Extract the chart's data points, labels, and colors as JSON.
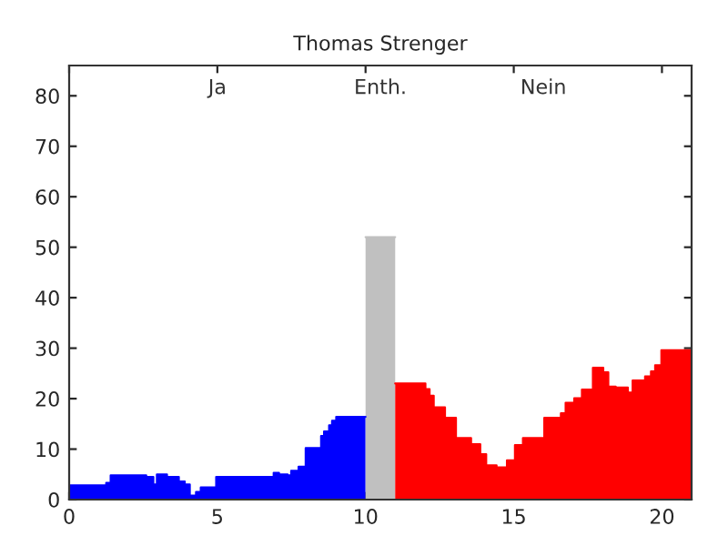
{
  "chart_data": {
    "type": "area",
    "title": "Thomas Strenger",
    "xlim": [
      0,
      21
    ],
    "xticks": [
      0,
      5,
      10,
      15,
      20
    ],
    "ylim": [
      0,
      86
    ],
    "yticks": [
      0,
      10,
      20,
      30,
      40,
      50,
      60,
      70,
      80
    ],
    "grid": false,
    "annotations": [
      "Ja",
      "Enth.",
      "Nein"
    ],
    "series": [
      {
        "color": "#0000ff",
        "x": [
          0,
          1.25,
          1.25,
          1.4,
          1.4,
          2.6,
          2.6,
          2.84,
          2.84,
          2.96,
          2.96,
          3.3,
          3.3,
          3.7,
          3.7,
          3.9,
          3.9,
          4.07,
          4.07,
          4.28,
          4.28,
          4.44,
          4.44,
          4.96,
          4.96,
          6.9,
          6.9,
          7.08,
          7.08,
          7.37,
          7.37,
          7.49,
          7.49,
          7.74,
          7.74,
          7.98,
          7.98,
          8.5,
          8.5,
          8.6,
          8.6,
          8.77,
          8.77,
          8.87,
          8.87,
          9.01,
          9.01,
          10
        ],
        "values": [
          2.8,
          2.8,
          3.3,
          3.3,
          4.8,
          4.8,
          4.5,
          4.5,
          3,
          3,
          5,
          5,
          4.5,
          4.5,
          3.6,
          3.6,
          3,
          3,
          0.8,
          0.8,
          1.5,
          1.5,
          2.4,
          2.4,
          4.5,
          4.5,
          5.3,
          5.3,
          5,
          5,
          4.8,
          4.8,
          5.7,
          5.7,
          6.5,
          6.5,
          10.2,
          10.2,
          12.6,
          12.6,
          13.5,
          13.5,
          14.7,
          14.7,
          15.6,
          15.6,
          16.4,
          16.4
        ]
      },
      {
        "color": "#c0c0c0",
        "x": [
          10,
          11
        ],
        "values": [
          52,
          52
        ]
      },
      {
        "color": "#ff0000",
        "x": [
          11,
          12.02,
          12.02,
          12.16,
          12.16,
          12.3,
          12.3,
          12.68,
          12.68,
          13.05,
          13.05,
          13.56,
          13.56,
          13.87,
          13.87,
          14.07,
          14.07,
          14.42,
          14.42,
          14.77,
          14.77,
          15.04,
          15.04,
          15.31,
          15.31,
          16.03,
          16.03,
          16.59,
          16.59,
          16.75,
          16.75,
          17.04,
          17.04,
          17.3,
          17.3,
          17.67,
          17.67,
          18.02,
          18.02,
          18.19,
          18.19,
          18.44,
          18.44,
          18.85,
          18.85,
          19.01,
          19.01,
          19.43,
          19.43,
          19.63,
          19.63,
          19.77,
          19.77,
          19.98,
          19.98,
          21
        ],
        "values": [
          23,
          23,
          21.9,
          21.9,
          20.6,
          20.6,
          18.3,
          18.3,
          16.2,
          16.2,
          12.2,
          12.2,
          11,
          11,
          9,
          9,
          6.8,
          6.8,
          6.4,
          6.4,
          7.8,
          7.8,
          10.8,
          10.8,
          12.2,
          12.2,
          16.2,
          16.2,
          17.1,
          17.1,
          19.2,
          19.2,
          20.1,
          20.1,
          21.8,
          21.8,
          26.1,
          26.1,
          25.2,
          25.2,
          22.4,
          22.4,
          22.2,
          22.2,
          21.2,
          21.2,
          23.6,
          23.6,
          24.4,
          24.4,
          25.4,
          25.4,
          26.6,
          26.6,
          29.6,
          29.6
        ]
      }
    ]
  }
}
